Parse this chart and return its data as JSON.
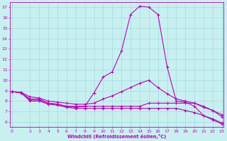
{
  "xlabel": "Windchill (Refroidissement éolien,°C)",
  "bg_color": "#c8f0f0",
  "line_color": "#bb00bb",
  "grid_color": "#99d8d8",
  "curve1_y": [
    8.9,
    8.8,
    8.2,
    8.2,
    7.8,
    7.7,
    7.5,
    7.5,
    7.5,
    8.8,
    10.3,
    10.8,
    12.8,
    16.3,
    17.1,
    17.0,
    16.3,
    11.3,
    8.0,
    7.9,
    7.5,
    6.6,
    6.2,
    5.8
  ],
  "curve2_y": [
    8.9,
    8.8,
    8.1,
    8.1,
    7.8,
    7.7,
    7.5,
    7.4,
    7.5,
    7.5,
    7.5,
    7.5,
    7.5,
    7.5,
    7.5,
    7.8,
    7.8,
    7.8,
    7.8,
    7.8,
    7.8,
    7.4,
    7.1,
    6.5
  ],
  "curve3_y": [
    8.9,
    8.8,
    8.0,
    8.0,
    7.7,
    7.6,
    7.4,
    7.3,
    7.3,
    7.3,
    7.3,
    7.3,
    7.3,
    7.3,
    7.3,
    7.3,
    7.3,
    7.3,
    7.3,
    7.1,
    6.9,
    6.6,
    6.3,
    5.9
  ],
  "curve4_y": [
    8.9,
    8.85,
    8.4,
    8.3,
    8.0,
    7.9,
    7.8,
    7.7,
    7.7,
    7.8,
    8.2,
    8.5,
    8.9,
    9.3,
    9.7,
    10.0,
    9.3,
    8.7,
    8.2,
    8.0,
    7.8,
    7.5,
    7.1,
    6.7
  ],
  "x": [
    0,
    1,
    2,
    3,
    4,
    5,
    6,
    7,
    8,
    9,
    10,
    11,
    12,
    13,
    14,
    15,
    16,
    17,
    18,
    19,
    20,
    21,
    22,
    23
  ],
  "ylim": [
    5.5,
    17.5
  ],
  "xlim": [
    -0.2,
    23.2
  ],
  "yticks": [
    6,
    7,
    8,
    9,
    10,
    11,
    12,
    13,
    14,
    15,
    16,
    17
  ],
  "xticks": [
    0,
    2,
    3,
    4,
    5,
    6,
    7,
    8,
    9,
    10,
    11,
    12,
    13,
    14,
    15,
    16,
    17,
    18,
    19,
    20,
    21,
    22,
    23
  ]
}
